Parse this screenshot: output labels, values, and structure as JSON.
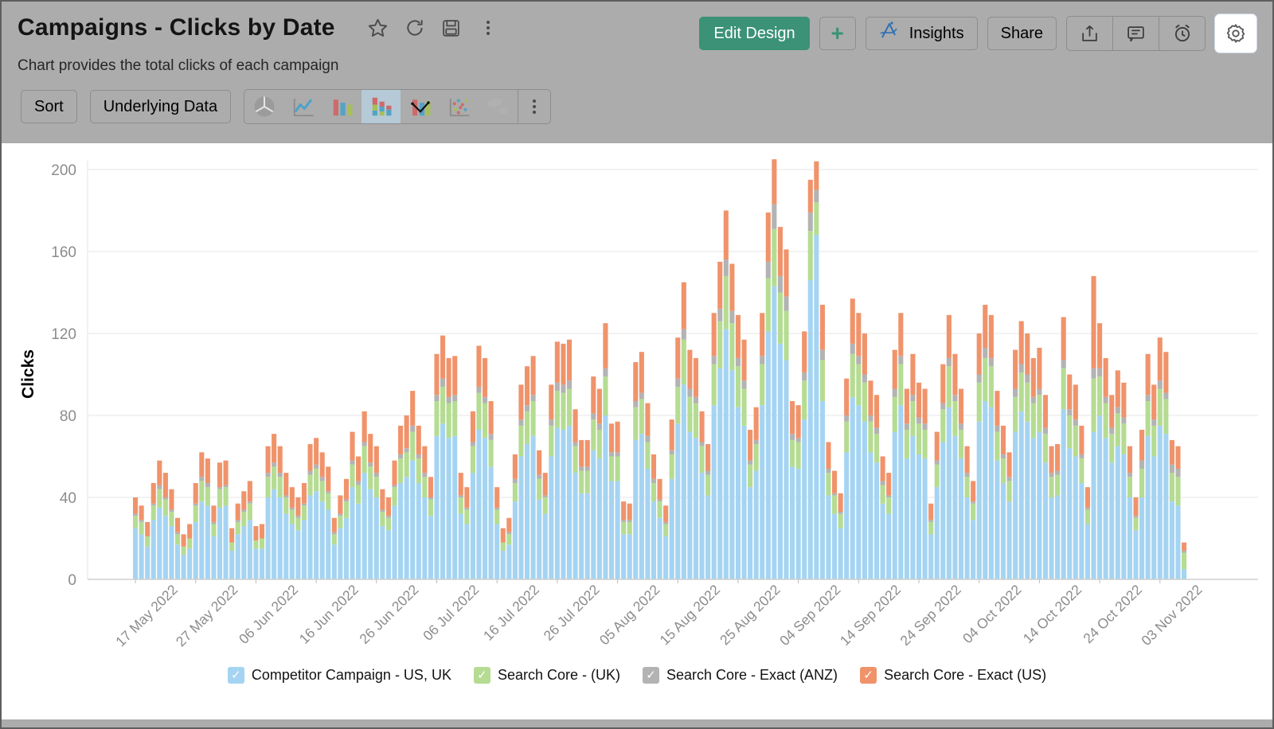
{
  "header": {
    "title": "Campaigns - Clicks by Date",
    "subtitle": "Chart provides the total clicks of each campaign",
    "title_icons": [
      "star-icon",
      "refresh-icon",
      "save-icon",
      "more-vert-icon"
    ],
    "actions": {
      "edit_design": "Edit Design",
      "add": "+",
      "insights": "Insights",
      "share": "Share",
      "icon_buttons": [
        "export-icon",
        "comment-icon",
        "alert-icon",
        "settings-gear-icon"
      ]
    },
    "accent_green": "#3b9276"
  },
  "toolbar": {
    "sort": "Sort",
    "underlying_data": "Underlying Data",
    "chart_types": [
      "pie",
      "line",
      "bar",
      "stacked-bar",
      "combo",
      "scatter",
      "map",
      "more"
    ],
    "selected_chart_type": "stacked-bar"
  },
  "chart_data": {
    "type": "bar",
    "stacked": true,
    "ylabel": "Clicks",
    "ylim": [
      0,
      200
    ],
    "yticks": [
      0,
      40,
      80,
      120,
      160,
      200
    ],
    "grid": true,
    "legend_position": "bottom",
    "x_start_date": "17 May 2022",
    "x_interval": "daily",
    "x_tick_every": 10,
    "x_tick_labels": [
      "17 May 2022",
      "27 May 2022",
      "06 Jun 2022",
      "16 Jun 2022",
      "26 Jun 2022",
      "06 Jul 2022",
      "16 Jul 2022",
      "26 Jul 2022",
      "05 Aug 2022",
      "15 Aug 2022",
      "25 Aug 2022",
      "04 Sep 2022",
      "14 Sep 2022",
      "24 Sep 2022",
      "04 Oct 2022",
      "14 Oct 2022",
      "24 Oct 2022",
      "03 Nov 2022"
    ],
    "series": [
      {
        "name": "Competitor Campaign - US, UK",
        "color": "#a5d4f2",
        "values": [
          25,
          22,
          16,
          29,
          35,
          31,
          26,
          17,
          12,
          15,
          28,
          38,
          36,
          21,
          35,
          36,
          14,
          22,
          26,
          29,
          15,
          15,
          40,
          44,
          40,
          32,
          27,
          24,
          29,
          41,
          43,
          38,
          34,
          17,
          25,
          30,
          45,
          37,
          52,
          44,
          40,
          26,
          24,
          36,
          47,
          50,
          58,
          47,
          40,
          31,
          70,
          76,
          69,
          70,
          32,
          27,
          52,
          73,
          69,
          55,
          27,
          14,
          17,
          38,
          60,
          66,
          70,
          39,
          32,
          60,
          74,
          73,
          75,
          52,
          42,
          42,
          63,
          59,
          80,
          48,
          48,
          22,
          22,
          68,
          71,
          54,
          38,
          30,
          21,
          49,
          76,
          95,
          72,
          69,
          52,
          41,
          85,
          103,
          122,
          102,
          84,
          75,
          45,
          53,
          85,
          121,
          143,
          115,
          107,
          55,
          54,
          78,
          146,
          168,
          87,
          41,
          32,
          25,
          62,
          89,
          85,
          77,
          62,
          57,
          37,
          32,
          72,
          85,
          59,
          70,
          61,
          59,
          22,
          45,
          67,
          84,
          70,
          59,
          40,
          29,
          77,
          87,
          84,
          58,
          47,
          38,
          72,
          82,
          77,
          69,
          72,
          57,
          40,
          41,
          83,
          64,
          60,
          47,
          27,
          72,
          80,
          69,
          57,
          65,
          61,
          40,
          24,
          40,
          70,
          60,
          75,
          71,
          38,
          36,
          5
        ]
      },
      {
        "name": "Search Core - (UK)",
        "color": "#b5dc92",
        "values": [
          6,
          6,
          5,
          7,
          9,
          8,
          7,
          5,
          4,
          5,
          8,
          10,
          9,
          6,
          9,
          9,
          4,
          6,
          7,
          8,
          4,
          5,
          10,
          11,
          10,
          8,
          7,
          6,
          7,
          10,
          11,
          10,
          8,
          5,
          6,
          8,
          11,
          9,
          13,
          11,
          10,
          7,
          6,
          9,
          12,
          12,
          14,
          12,
          10,
          8,
          17,
          18,
          17,
          17,
          8,
          7,
          13,
          18,
          17,
          13,
          7,
          4,
          5,
          9,
          15,
          16,
          17,
          10,
          8,
          15,
          18,
          18,
          18,
          13,
          11,
          11,
          15,
          14,
          19,
          12,
          12,
          6,
          6,
          16,
          17,
          13,
          9,
          8,
          6,
          12,
          18,
          22,
          17,
          17,
          13,
          10,
          20,
          23,
          26,
          23,
          20,
          18,
          11,
          13,
          20,
          26,
          28,
          25,
          24,
          13,
          13,
          19,
          24,
          16,
          20,
          11,
          9,
          7,
          15,
          21,
          20,
          19,
          15,
          14,
          9,
          8,
          17,
          20,
          14,
          17,
          15,
          14,
          6,
          11,
          16,
          20,
          17,
          14,
          10,
          8,
          19,
          21,
          20,
          14,
          12,
          10,
          17,
          19,
          19,
          17,
          18,
          14,
          10,
          10,
          20,
          16,
          15,
          12,
          7,
          26,
          19,
          17,
          14,
          16,
          15,
          10,
          6,
          14,
          17,
          15,
          18,
          17,
          14,
          14,
          8
        ]
      },
      {
        "name": "Search Core - Exact (ANZ)",
        "color": "#b3b3b3",
        "values": [
          1,
          1,
          0,
          1,
          2,
          1,
          1,
          1,
          0,
          0,
          1,
          2,
          2,
          1,
          1,
          1,
          0,
          1,
          1,
          1,
          0,
          0,
          2,
          2,
          2,
          1,
          1,
          1,
          1,
          2,
          2,
          2,
          1,
          1,
          1,
          1,
          2,
          2,
          2,
          2,
          2,
          1,
          1,
          1,
          2,
          2,
          3,
          2,
          2,
          1,
          3,
          4,
          3,
          3,
          1,
          1,
          2,
          3,
          3,
          3,
          1,
          0,
          1,
          2,
          3,
          3,
          3,
          2,
          1,
          3,
          4,
          4,
          4,
          2,
          2,
          2,
          3,
          3,
          4,
          2,
          2,
          1,
          1,
          3,
          3,
          3,
          2,
          1,
          1,
          2,
          4,
          5,
          4,
          3,
          2,
          2,
          4,
          6,
          8,
          6,
          4,
          4,
          2,
          2,
          4,
          8,
          12,
          8,
          7,
          3,
          2,
          4,
          9,
          6,
          5,
          2,
          1,
          1,
          3,
          5,
          4,
          4,
          3,
          3,
          2,
          1,
          4,
          4,
          3,
          3,
          3,
          3,
          1,
          2,
          3,
          4,
          3,
          3,
          2,
          1,
          4,
          5,
          4,
          3,
          2,
          2,
          4,
          4,
          4,
          3,
          3,
          3,
          2,
          2,
          4,
          3,
          3,
          2,
          1,
          5,
          4,
          3,
          3,
          3,
          3,
          2,
          1,
          4,
          3,
          3,
          4,
          3,
          4,
          4,
          1
        ]
      },
      {
        "name": "Search Core - Exact (US)",
        "color": "#f0936b",
        "values": [
          8,
          7,
          7,
          10,
          12,
          12,
          10,
          7,
          6,
          7,
          10,
          12,
          12,
          8,
          12,
          12,
          7,
          8,
          9,
          10,
          7,
          7,
          13,
          14,
          13,
          11,
          10,
          9,
          10,
          13,
          13,
          12,
          12,
          7,
          9,
          10,
          14,
          12,
          15,
          14,
          13,
          10,
          9,
          12,
          14,
          16,
          17,
          14,
          13,
          10,
          20,
          21,
          19,
          19,
          11,
          10,
          15,
          20,
          19,
          16,
          10,
          7,
          7,
          12,
          17,
          19,
          19,
          12,
          11,
          17,
          20,
          20,
          20,
          16,
          13,
          13,
          18,
          17,
          22,
          14,
          15,
          9,
          8,
          19,
          20,
          16,
          12,
          10,
          8,
          15,
          20,
          23,
          19,
          19,
          15,
          13,
          21,
          23,
          24,
          23,
          21,
          20,
          15,
          16,
          21,
          24,
          22,
          24,
          23,
          16,
          16,
          20,
          16,
          14,
          22,
          13,
          11,
          9,
          18,
          22,
          21,
          20,
          17,
          16,
          12,
          11,
          19,
          21,
          17,
          20,
          17,
          17,
          8,
          14,
          19,
          21,
          20,
          17,
          13,
          10,
          20,
          21,
          21,
          17,
          14,
          12,
          19,
          21,
          20,
          19,
          20,
          16,
          13,
          13,
          21,
          17,
          17,
          14,
          10,
          45,
          22,
          19,
          16,
          18,
          17,
          13,
          9,
          15,
          20,
          17,
          21,
          20,
          12,
          11,
          4
        ]
      }
    ]
  }
}
